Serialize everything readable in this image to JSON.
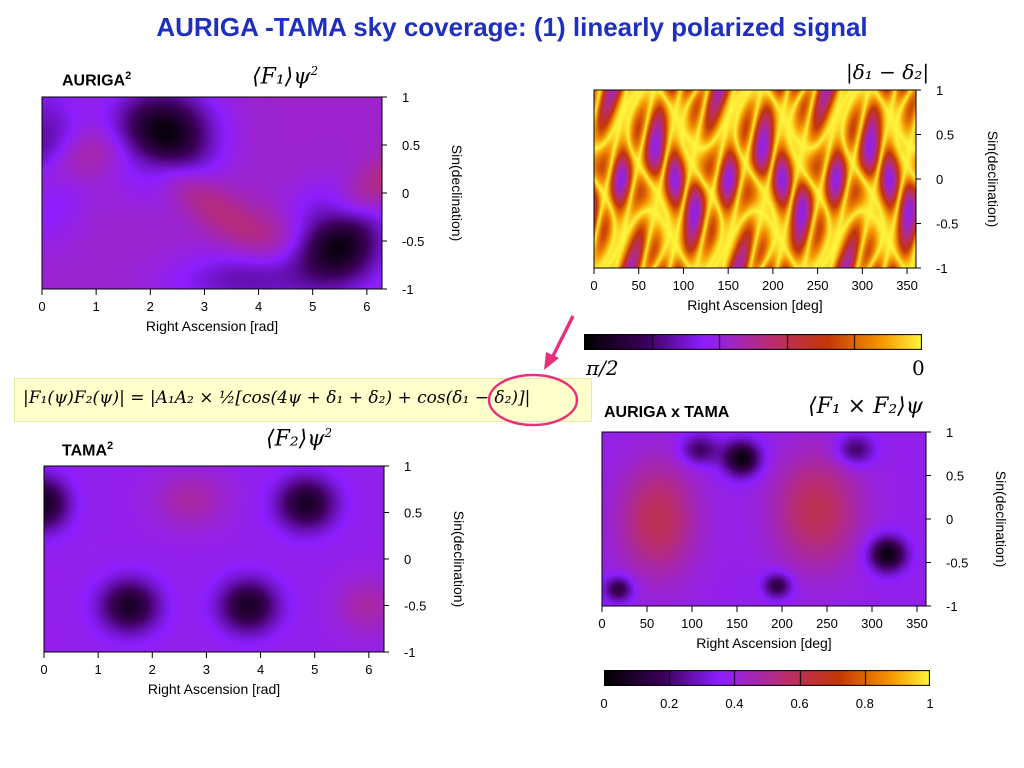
{
  "title": "AURIGA -TAMA  sky coverage:  (1) linearly polarized signal",
  "panels": {
    "auriga": {
      "name": "AURIGA",
      "sup": "2",
      "math": "⟨F₁⟩ψ",
      "math_sup": "2"
    },
    "tama": {
      "name": "TAMA",
      "sup": "2",
      "math": "⟨F₂⟩ψ",
      "math_sup": "2"
    },
    "delta": {
      "math": "|δ₁ − δ₂|"
    },
    "product": {
      "name": "AURIGA x TAMA",
      "math": "⟨F₁ × F₂⟩ψ"
    }
  },
  "formula": "|F₁(ψ)F₂(ψ)| = |A₁A₂ × ½[cos(4ψ + δ₁ + δ₂) + cos(δ₁ − δ₂)]|",
  "colorbar_phase": {
    "left": "π/2",
    "right": "0"
  },
  "colorbar_product": {
    "ticks": [
      "0",
      "0.2",
      "0.4",
      "0.6",
      "0.8",
      "1"
    ]
  },
  "colors": {
    "title": "#1f2fbf",
    "arrow": "#e8307a",
    "circle": "#e8307a",
    "formula_bg": "#ffffcc"
  },
  "chart_data": [
    {
      "type": "heatmap",
      "title": "AURIGA² ⟨F₁⟩ψ²",
      "xlabel": "Right Ascension [rad]",
      "ylabel": "Sin(declination)",
      "xticks": [
        "0",
        "1",
        "2",
        "3",
        "4",
        "5",
        "6"
      ],
      "yticks": [
        "1",
        "0.5",
        "0",
        "-0.5",
        "-1"
      ],
      "xlim": [
        0,
        6.28
      ],
      "ylim": [
        -1,
        1
      ]
    },
    {
      "type": "heatmap",
      "title": "|δ₁ − δ₂|",
      "xlabel": "Right Ascension [deg]",
      "ylabel": "Sin(declination)",
      "xticks": [
        "0",
        "50",
        "100",
        "150",
        "200",
        "250",
        "300",
        "350"
      ],
      "yticks": [
        "1",
        "0.5",
        "0",
        "-0.5",
        "-1"
      ],
      "xlim": [
        0,
        360
      ],
      "ylim": [
        -1,
        1
      ],
      "colorscale": [
        "π/2",
        "0"
      ]
    },
    {
      "type": "heatmap",
      "title": "TAMA² ⟨F₂⟩ψ²",
      "xlabel": "Right Ascension [rad]",
      "ylabel": "Sin(declination)",
      "xticks": [
        "0",
        "1",
        "2",
        "3",
        "4",
        "5",
        "6"
      ],
      "yticks": [
        "1",
        "0.5",
        "0",
        "-0.5",
        "-1"
      ],
      "xlim": [
        0,
        6.28
      ],
      "ylim": [
        -1,
        1
      ]
    },
    {
      "type": "heatmap",
      "title": "AURIGA x TAMA ⟨F₁ × F₂⟩ψ",
      "xlabel": "Right Ascension [deg]",
      "ylabel": "Sin(declination)",
      "xticks": [
        "0",
        "50",
        "100",
        "150",
        "200",
        "250",
        "300",
        "350"
      ],
      "yticks": [
        "1",
        "0.5",
        "0",
        "-0.5",
        "-1"
      ],
      "xlim": [
        0,
        360
      ],
      "ylim": [
        -1,
        1
      ],
      "colorscale": [
        "0",
        "0.2",
        "0.4",
        "0.6",
        "0.8",
        "1"
      ]
    }
  ]
}
